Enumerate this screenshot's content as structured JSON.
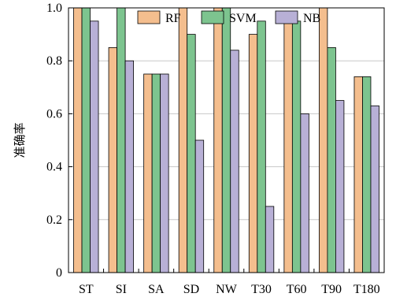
{
  "chart_data": {
    "type": "bar",
    "title": "",
    "xlabel": "",
    "ylabel": "准确率",
    "ylim": [
      0,
      1.0
    ],
    "yticks": [
      "0",
      "0.2",
      "0.4",
      "0.6",
      "0.8",
      "1.0"
    ],
    "grid": "horizontal",
    "legend_position": "top",
    "categories": [
      "ST",
      "SI",
      "SA",
      "SD",
      "NW",
      "T30",
      "T60",
      "T90",
      "T180"
    ],
    "series": [
      {
        "name": "RF",
        "color": "#F4BE8E",
        "values": [
          1.0,
          0.85,
          0.75,
          1.0,
          1.0,
          0.9,
          0.95,
          1.0,
          0.74
        ]
      },
      {
        "name": "SVM",
        "color": "#7DC48F",
        "values": [
          1.0,
          1.0,
          0.75,
          0.9,
          1.0,
          0.95,
          0.95,
          0.85,
          0.74
        ]
      },
      {
        "name": "NB",
        "color": "#B8B0D6",
        "values": [
          0.95,
          0.8,
          0.75,
          0.5,
          0.84,
          0.25,
          0.6,
          0.65,
          0.63
        ]
      }
    ]
  }
}
